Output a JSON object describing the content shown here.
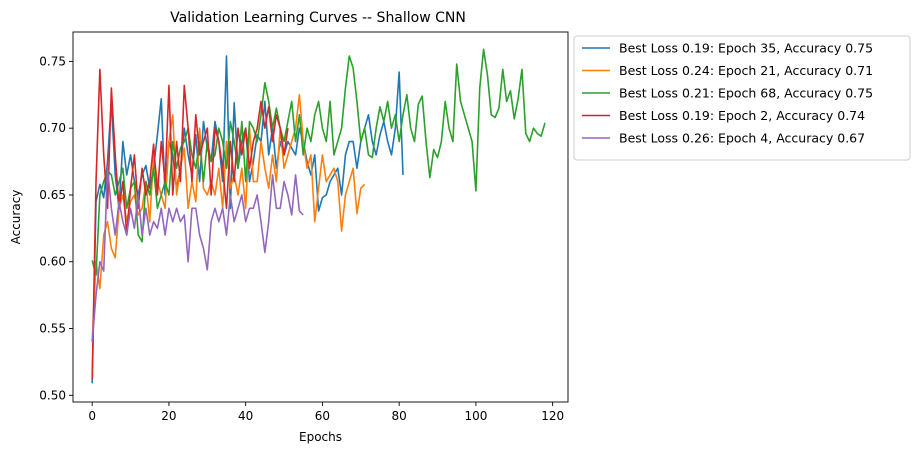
{
  "chart_data": {
    "type": "line",
    "title": "Validation Learning Curves -- Shallow CNN",
    "xlabel": "Epochs",
    "ylabel": "Accuracy",
    "xlim": [
      -5,
      124
    ],
    "ylim": [
      0.495,
      0.772
    ],
    "xticks": [
      0,
      20,
      40,
      60,
      80,
      100,
      120
    ],
    "yticks": [
      0.5,
      0.55,
      0.6,
      0.65,
      0.7,
      0.75
    ],
    "xtick_labels": [
      "0",
      "20",
      "40",
      "60",
      "80",
      "100",
      "120"
    ],
    "ytick_labels": [
      "0.50",
      "0.55",
      "0.60",
      "0.65",
      "0.70",
      "0.75"
    ],
    "grid": false,
    "legend_position": "outside-top-right",
    "series": [
      {
        "name": "Best Loss 0.19:  Epoch 35, Accuracy 0.75",
        "color": "#1f77b4",
        "values": [
          0.509,
          0.645,
          0.658,
          0.648,
          0.675,
          0.72,
          0.665,
          0.64,
          0.69,
          0.665,
          0.68,
          0.66,
          0.65,
          0.665,
          0.672,
          0.655,
          0.67,
          0.695,
          0.722,
          0.65,
          0.69,
          0.68,
          0.655,
          0.67,
          0.7,
          0.68,
          0.665,
          0.695,
          0.66,
          0.705,
          0.685,
          0.675,
          0.705,
          0.69,
          0.66,
          0.754,
          0.64,
          0.719,
          0.67,
          0.69,
          0.7,
          0.66,
          0.675,
          0.695,
          0.69,
          0.72,
          0.68,
          0.7,
          0.67,
          0.69,
          0.68,
          0.69,
          0.685,
          0.68,
          0.7,
          0.69,
          0.675,
          0.665,
          0.68,
          0.638,
          0.648,
          0.65,
          0.66,
          0.665,
          0.67,
          0.65,
          0.68,
          0.69,
          0.69,
          0.67,
          0.69,
          0.7,
          0.71,
          0.69,
          0.68,
          0.695,
          0.705,
          0.69,
          0.68,
          0.7,
          0.742,
          0.665
        ]
      },
      {
        "name": "Best Loss 0.24:  Epoch 21, Accuracy 0.71",
        "color": "#ff7f0e",
        "values": [
          0.54,
          0.6,
          0.58,
          0.62,
          0.63,
          0.61,
          0.603,
          0.64,
          0.65,
          0.63,
          0.645,
          0.65,
          0.635,
          0.64,
          0.66,
          0.63,
          0.68,
          0.66,
          0.65,
          0.64,
          0.69,
          0.71,
          0.65,
          0.67,
          0.685,
          0.64,
          0.66,
          0.645,
          0.7,
          0.655,
          0.65,
          0.66,
          0.65,
          0.67,
          0.64,
          0.69,
          0.655,
          0.665,
          0.65,
          0.67,
          0.64,
          0.7,
          0.66,
          0.66,
          0.69,
          0.67,
          0.655,
          0.68,
          0.66,
          0.7,
          0.67,
          0.68,
          0.69,
          0.7,
          0.725,
          0.69,
          0.67,
          0.68,
          0.63,
          0.655,
          0.68,
          0.66,
          0.665,
          0.67,
          0.66,
          0.623,
          0.65,
          0.66,
          0.67,
          0.636,
          0.655,
          0.658
        ]
      },
      {
        "name": "Best Loss 0.21:  Epoch 68, Accuracy 0.75",
        "color": "#2ca02c",
        "values": [
          0.601,
          0.59,
          0.65,
          0.66,
          0.668,
          0.665,
          0.65,
          0.66,
          0.67,
          0.64,
          0.655,
          0.66,
          0.62,
          0.615,
          0.66,
          0.65,
          0.67,
          0.64,
          0.65,
          0.66,
          0.65,
          0.69,
          0.67,
          0.685,
          0.69,
          0.7,
          0.68,
          0.67,
          0.69,
          0.66,
          0.69,
          0.675,
          0.68,
          0.7,
          0.69,
          0.67,
          0.705,
          0.69,
          0.67,
          0.705,
          0.66,
          0.705,
          0.7,
          0.69,
          0.71,
          0.734,
          0.72,
          0.7,
          0.715,
          0.7,
          0.69,
          0.705,
          0.72,
          0.69,
          0.71,
          0.68,
          0.7,
          0.69,
          0.71,
          0.72,
          0.7,
          0.69,
          0.72,
          0.68,
          0.69,
          0.7,
          0.73,
          0.754,
          0.745,
          0.72,
          0.69,
          0.7,
          0.68,
          0.678,
          0.7,
          0.716,
          0.705,
          0.72,
          0.7,
          0.71,
          0.69,
          0.71,
          0.725,
          0.7,
          0.69,
          0.718,
          0.724,
          0.69,
          0.663,
          0.684,
          0.678,
          0.69,
          0.72,
          0.7,
          0.69,
          0.748,
          0.72,
          0.71,
          0.7,
          0.69,
          0.653,
          0.73,
          0.759,
          0.74,
          0.71,
          0.708,
          0.715,
          0.744,
          0.72,
          0.728,
          0.707,
          0.722,
          0.744,
          0.696,
          0.69,
          0.7,
          0.696,
          0.694,
          0.704
        ]
      },
      {
        "name": "Best Loss 0.19:  Epoch 2, Accuracy 0.74",
        "color": "#d62728",
        "values": [
          0.512,
          0.66,
          0.744,
          0.68,
          0.64,
          0.73,
          0.68,
          0.64,
          0.66,
          0.62,
          0.655,
          0.68,
          0.64,
          0.67,
          0.65,
          0.66,
          0.688,
          0.65,
          0.69,
          0.66,
          0.732,
          0.65,
          0.69,
          0.66,
          0.732,
          0.7,
          0.66,
          0.71,
          0.68,
          0.69,
          0.7,
          0.65,
          0.7,
          0.69,
          0.67,
          0.64,
          0.69,
          0.66,
          0.7,
          0.68,
          0.7,
          0.67,
          0.69,
          0.7,
          0.72,
          0.7,
          0.716,
          0.69,
          0.71,
          0.7,
          0.68,
          0.7
        ]
      },
      {
        "name": "Best Loss 0.26:  Epoch 4, Accuracy 0.67",
        "color": "#9467bd",
        "values": [
          0.54,
          0.575,
          0.6,
          0.593,
          0.67,
          0.64,
          0.62,
          0.645,
          0.63,
          0.62,
          0.64,
          0.625,
          0.65,
          0.62,
          0.64,
          0.62,
          0.63,
          0.625,
          0.64,
          0.62,
          0.64,
          0.63,
          0.64,
          0.63,
          0.635,
          0.6,
          0.64,
          0.64,
          0.62,
          0.61,
          0.594,
          0.63,
          0.64,
          0.63,
          0.64,
          0.62,
          0.65,
          0.63,
          0.64,
          0.65,
          0.63,
          0.64,
          0.64,
          0.65,
          0.63,
          0.607,
          0.63,
          0.665,
          0.64,
          0.64,
          0.66,
          0.65,
          0.635,
          0.665,
          0.638,
          0.635
        ]
      }
    ]
  }
}
